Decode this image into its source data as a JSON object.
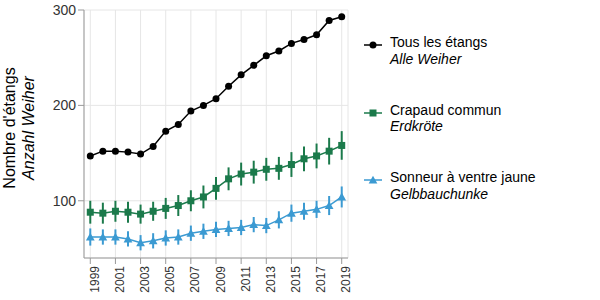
{
  "chart_data": {
    "type": "line",
    "x": [
      1999,
      2000,
      2001,
      2002,
      2003,
      2004,
      2005,
      2006,
      2007,
      2008,
      2009,
      2010,
      2011,
      2012,
      2013,
      2014,
      2015,
      2016,
      2017,
      2018,
      2019
    ],
    "xlim": [
      1998.5,
      2019.5
    ],
    "xticks": [
      1999,
      2001,
      2003,
      2005,
      2007,
      2009,
      2011,
      2013,
      2015,
      2017,
      2019
    ],
    "ylim": [
      40,
      300
    ],
    "yticks": [
      100,
      200,
      300
    ],
    "ylabel": "Nombre d'étangs\nAnzahl Weiher",
    "grid": true,
    "legend": "right",
    "series": [
      {
        "name": "Tous les étangs\nAlle Weiher",
        "color": "#000000",
        "marker": "circle",
        "values": [
          147,
          152,
          152,
          151,
          149,
          157,
          173,
          180,
          194,
          200,
          207,
          220,
          232,
          242,
          252,
          257,
          265,
          269,
          274,
          289,
          293
        ]
      },
      {
        "name": "Crapaud commun\nErdkröte",
        "color": "#1b7a4b",
        "marker": "square",
        "values": [
          88,
          87,
          89,
          88,
          86,
          89,
          92,
          95,
          100,
          104,
          113,
          123,
          128,
          130,
          133,
          134,
          138,
          144,
          147,
          152,
          158
        ],
        "errors": [
          12,
          11,
          11,
          11,
          10,
          10,
          11,
          11,
          11,
          12,
          12,
          12,
          12,
          12,
          12,
          12,
          13,
          13,
          13,
          14,
          15
        ]
      },
      {
        "name": "Sonneur à ventre jaune\nGelbbauchunke",
        "color": "#3b9ad2",
        "marker": "triangle",
        "values": [
          62,
          62,
          62,
          60,
          56,
          58,
          61,
          62,
          66,
          68,
          70,
          71,
          72,
          75,
          74,
          80,
          87,
          89,
          91,
          95,
          104
        ],
        "errors": [
          9,
          8,
          8,
          8,
          8,
          8,
          8,
          8,
          8,
          8,
          8,
          8,
          8,
          8,
          8,
          9,
          9,
          9,
          9,
          10,
          11
        ]
      }
    ]
  }
}
